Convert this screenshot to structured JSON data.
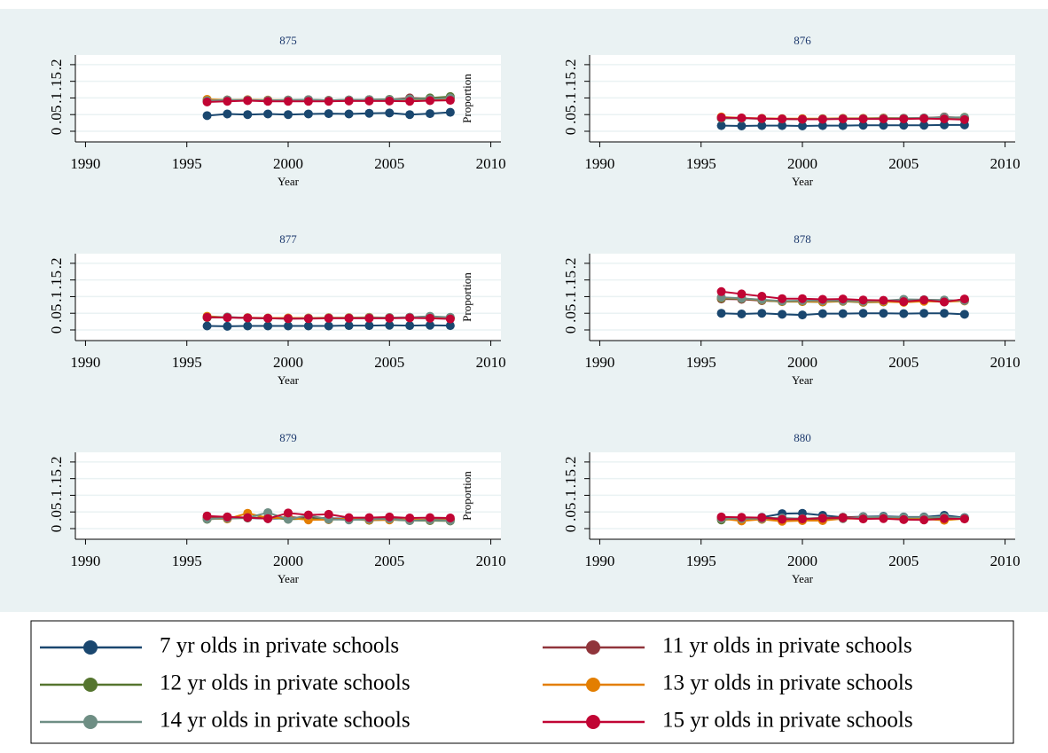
{
  "chart_data": [
    {
      "type": "line",
      "title": "875",
      "xlabel": "Year",
      "ylabel": "Proportion",
      "x": [
        1996,
        1997,
        1998,
        1999,
        2000,
        2001,
        2002,
        2003,
        2004,
        2005,
        2006,
        2007,
        2008
      ],
      "xlim": [
        1989.5,
        2010.5
      ],
      "xticks": [
        1990,
        1995,
        2000,
        2005,
        2010
      ],
      "ylim": [
        -0.032,
        0.229
      ],
      "yticks": [
        0,
        {
          "value": 0.05,
          "label": ".05"
        },
        {
          "value": 0.1,
          "label": ".1"
        },
        {
          "value": 0.15,
          "label": ".15"
        },
        {
          "value": 0.2,
          "label": ".2"
        }
      ],
      "grid": true,
      "series": [
        {
          "name": "7 yr olds in private schools",
          "color": "#1a476f",
          "values": [
            0.047,
            0.052,
            0.05,
            0.052,
            0.05,
            0.052,
            0.053,
            0.052,
            0.054,
            0.055,
            0.05,
            0.053,
            0.057
          ]
        },
        {
          "name": "11 yr olds in private schools",
          "color": "#90353b",
          "values": [
            0.092,
            0.093,
            0.094,
            0.093,
            0.093,
            0.095,
            0.093,
            0.094,
            0.095,
            0.095,
            0.1,
            0.098,
            0.1
          ]
        },
        {
          "name": "12 yr olds in private schools",
          "color": "#55752f",
          "values": [
            0.093,
            0.094,
            0.094,
            0.093,
            0.093,
            0.094,
            0.093,
            0.094,
            0.095,
            0.096,
            0.097,
            0.1,
            0.104
          ]
        },
        {
          "name": "13 yr olds in private schools",
          "color": "#e37e00",
          "values": [
            0.096,
            0.094,
            0.095,
            0.094,
            0.094,
            0.094,
            0.093,
            0.093,
            0.094,
            0.094,
            0.094,
            0.096,
            0.098
          ]
        },
        {
          "name": "14 yr olds in private schools",
          "color": "#6e8e84",
          "values": [
            0.092,
            0.094,
            0.094,
            0.093,
            0.094,
            0.095,
            0.093,
            0.094,
            0.095,
            0.095,
            0.097,
            0.097,
            0.1
          ]
        },
        {
          "name": "15 yr olds in private schools",
          "color": "#c10534",
          "values": [
            0.088,
            0.09,
            0.092,
            0.09,
            0.09,
            0.09,
            0.09,
            0.091,
            0.091,
            0.091,
            0.09,
            0.092,
            0.093
          ]
        }
      ]
    },
    {
      "type": "line",
      "title": "876",
      "xlabel": "Year",
      "x": [
        1996,
        1997,
        1998,
        1999,
        2000,
        2001,
        2002,
        2003,
        2004,
        2005,
        2006,
        2007,
        2008
      ],
      "xlim": [
        1989.5,
        2010.5
      ],
      "xticks": [
        1990,
        1995,
        2000,
        2005,
        2010
      ],
      "ylim": [
        -0.032,
        0.229
      ],
      "yticks": [
        0,
        {
          "value": 0.05,
          "label": ".05"
        },
        {
          "value": 0.1,
          "label": ".1"
        },
        {
          "value": 0.15,
          "label": ".15"
        },
        {
          "value": 0.2,
          "label": ".2"
        }
      ],
      "grid": true,
      "series": [
        {
          "color": "#1a476f",
          "values": [
            0.017,
            0.016,
            0.017,
            0.017,
            0.016,
            0.017,
            0.017,
            0.018,
            0.018,
            0.018,
            0.018,
            0.019,
            0.019
          ]
        },
        {
          "color": "#90353b",
          "values": [
            0.04,
            0.039,
            0.038,
            0.037,
            0.037,
            0.037,
            0.038,
            0.038,
            0.039,
            0.039,
            0.04,
            0.043,
            0.04
          ]
        },
        {
          "color": "#55752f",
          "values": [
            0.039,
            0.039,
            0.038,
            0.037,
            0.036,
            0.037,
            0.038,
            0.038,
            0.038,
            0.039,
            0.039,
            0.041,
            0.042
          ]
        },
        {
          "color": "#e37e00",
          "values": [
            0.043,
            0.04,
            0.039,
            0.038,
            0.038,
            0.038,
            0.039,
            0.039,
            0.04,
            0.039,
            0.039,
            0.04,
            0.039
          ]
        },
        {
          "color": "#6e8e84",
          "values": [
            0.04,
            0.039,
            0.038,
            0.037,
            0.036,
            0.037,
            0.038,
            0.038,
            0.039,
            0.039,
            0.04,
            0.042,
            0.041
          ]
        },
        {
          "color": "#c10534",
          "values": [
            0.041,
            0.04,
            0.038,
            0.037,
            0.036,
            0.036,
            0.037,
            0.037,
            0.037,
            0.037,
            0.038,
            0.037,
            0.035
          ]
        }
      ]
    },
    {
      "type": "line",
      "title": "877",
      "xlabel": "Year",
      "ylabel": "Proportion",
      "x": [
        1996,
        1997,
        1998,
        1999,
        2000,
        2001,
        2002,
        2003,
        2004,
        2005,
        2006,
        2007,
        2008
      ],
      "xlim": [
        1989.5,
        2010.5
      ],
      "xticks": [
        1990,
        1995,
        2000,
        2005,
        2010
      ],
      "ylim": [
        -0.032,
        0.229
      ],
      "yticks": [
        0,
        {
          "value": 0.05,
          "label": ".05"
        },
        {
          "value": 0.1,
          "label": ".1"
        },
        {
          "value": 0.15,
          "label": ".15"
        },
        {
          "value": 0.2,
          "label": ".2"
        }
      ],
      "grid": true,
      "series": [
        {
          "color": "#1a476f",
          "values": [
            0.012,
            0.011,
            0.012,
            0.012,
            0.012,
            0.012,
            0.012,
            0.013,
            0.013,
            0.014,
            0.013,
            0.014,
            0.013
          ]
        },
        {
          "color": "#90353b",
          "values": [
            0.038,
            0.038,
            0.036,
            0.035,
            0.035,
            0.035,
            0.036,
            0.036,
            0.037,
            0.037,
            0.038,
            0.04,
            0.035
          ]
        },
        {
          "color": "#55752f",
          "values": [
            0.037,
            0.038,
            0.036,
            0.035,
            0.034,
            0.035,
            0.036,
            0.036,
            0.036,
            0.037,
            0.037,
            0.04,
            0.037
          ]
        },
        {
          "color": "#e37e00",
          "values": [
            0.041,
            0.038,
            0.037,
            0.036,
            0.036,
            0.036,
            0.037,
            0.037,
            0.038,
            0.037,
            0.037,
            0.038,
            0.036
          ]
        },
        {
          "color": "#6e8e84",
          "values": [
            0.038,
            0.039,
            0.036,
            0.035,
            0.034,
            0.035,
            0.036,
            0.036,
            0.037,
            0.037,
            0.038,
            0.041,
            0.038
          ]
        },
        {
          "color": "#c10534",
          "values": [
            0.038,
            0.037,
            0.036,
            0.035,
            0.034,
            0.034,
            0.035,
            0.035,
            0.035,
            0.035,
            0.036,
            0.035,
            0.033
          ]
        }
      ]
    },
    {
      "type": "line",
      "title": "878",
      "xlabel": "Year",
      "x": [
        1996,
        1997,
        1998,
        1999,
        2000,
        2001,
        2002,
        2003,
        2004,
        2005,
        2006,
        2007,
        2008
      ],
      "xlim": [
        1989.5,
        2010.5
      ],
      "xticks": [
        1990,
        1995,
        2000,
        2005,
        2010
      ],
      "ylim": [
        -0.032,
        0.229
      ],
      "yticks": [
        0,
        {
          "value": 0.05,
          "label": ".05"
        },
        {
          "value": 0.1,
          "label": ".1"
        },
        {
          "value": 0.15,
          "label": ".15"
        },
        {
          "value": 0.2,
          "label": ".2"
        }
      ],
      "grid": true,
      "series": [
        {
          "color": "#1a476f",
          "values": [
            0.05,
            0.048,
            0.05,
            0.047,
            0.045,
            0.049,
            0.049,
            0.05,
            0.05,
            0.049,
            0.05,
            0.05,
            0.047
          ]
        },
        {
          "color": "#90353b",
          "values": [
            0.093,
            0.092,
            0.088,
            0.086,
            0.087,
            0.088,
            0.089,
            0.087,
            0.086,
            0.087,
            0.088,
            0.084,
            0.092
          ]
        },
        {
          "color": "#55752f",
          "values": [
            0.095,
            0.094,
            0.089,
            0.085,
            0.085,
            0.084,
            0.086,
            0.083,
            0.084,
            0.09,
            0.088,
            0.088,
            0.088
          ]
        },
        {
          "color": "#e37e00",
          "values": [
            0.097,
            0.095,
            0.09,
            0.086,
            0.086,
            0.085,
            0.087,
            0.084,
            0.085,
            0.083,
            0.086,
            0.085,
            0.087
          ]
        },
        {
          "color": "#6e8e84",
          "values": [
            0.098,
            0.095,
            0.091,
            0.087,
            0.088,
            0.088,
            0.088,
            0.086,
            0.088,
            0.092,
            0.091,
            0.09,
            0.088
          ]
        },
        {
          "color": "#c10534",
          "values": [
            0.115,
            0.108,
            0.101,
            0.094,
            0.094,
            0.092,
            0.093,
            0.09,
            0.089,
            0.085,
            0.09,
            0.084,
            0.093
          ]
        }
      ]
    },
    {
      "type": "line",
      "title": "879",
      "xlabel": "Year",
      "ylabel": "Proportion",
      "x": [
        1996,
        1997,
        1998,
        1999,
        2000,
        2001,
        2002,
        2003,
        2004,
        2005,
        2006,
        2007,
        2008
      ],
      "xlim": [
        1989.5,
        2010.5
      ],
      "xticks": [
        1990,
        1995,
        2000,
        2005,
        2010
      ],
      "ylim": [
        -0.032,
        0.229
      ],
      "yticks": [
        0,
        {
          "value": 0.05,
          "label": ".05"
        },
        {
          "value": 0.1,
          "label": ".1"
        },
        {
          "value": 0.15,
          "label": ".15"
        },
        {
          "value": 0.2,
          "label": ".2"
        }
      ],
      "grid": true,
      "series": [
        {
          "color": "#1a476f",
          "values": [
            0.03,
            0.031,
            0.032,
            0.03,
            0.031,
            0.034,
            0.031,
            0.03,
            0.027,
            0.03,
            0.026,
            0.027,
            0.028
          ]
        },
        {
          "color": "#90353b",
          "values": [
            0.034,
            0.035,
            0.033,
            0.03,
            0.035,
            0.031,
            0.03,
            0.029,
            0.028,
            0.031,
            0.025,
            0.028,
            0.027
          ]
        },
        {
          "color": "#55752f",
          "values": [
            0.028,
            0.031,
            0.032,
            0.034,
            0.028,
            0.03,
            0.027,
            0.029,
            0.025,
            0.027,
            0.024,
            0.024,
            0.023
          ]
        },
        {
          "color": "#e37e00",
          "values": [
            0.03,
            0.029,
            0.046,
            0.032,
            0.033,
            0.026,
            0.027,
            0.03,
            0.026,
            0.026,
            0.028,
            0.026,
            0.026
          ]
        },
        {
          "color": "#6e8e84",
          "values": [
            0.029,
            0.031,
            0.033,
            0.048,
            0.028,
            0.04,
            0.028,
            0.026,
            0.028,
            0.029,
            0.024,
            0.026,
            0.024
          ]
        },
        {
          "color": "#c10534",
          "values": [
            0.038,
            0.035,
            0.033,
            0.03,
            0.047,
            0.041,
            0.043,
            0.033,
            0.033,
            0.035,
            0.032,
            0.033,
            0.032
          ]
        }
      ]
    },
    {
      "type": "line",
      "title": "880",
      "xlabel": "Year",
      "x": [
        1996,
        1997,
        1998,
        1999,
        2000,
        2001,
        2002,
        2003,
        2004,
        2005,
        2006,
        2007,
        2008
      ],
      "xlim": [
        1989.5,
        2010.5
      ],
      "xticks": [
        1990,
        1995,
        2000,
        2005,
        2010
      ],
      "ylim": [
        -0.032,
        0.229
      ],
      "yticks": [
        0,
        {
          "value": 0.05,
          "label": ".05"
        },
        {
          "value": 0.1,
          "label": ".1"
        },
        {
          "value": 0.15,
          "label": ".15"
        },
        {
          "value": 0.2,
          "label": ".2"
        }
      ],
      "grid": true,
      "series": [
        {
          "color": "#1a476f",
          "values": [
            0.03,
            0.03,
            0.034,
            0.045,
            0.046,
            0.04,
            0.034,
            0.036,
            0.037,
            0.035,
            0.035,
            0.04,
            0.033
          ]
        },
        {
          "color": "#90353b",
          "values": [
            0.032,
            0.032,
            0.033,
            0.031,
            0.03,
            0.032,
            0.034,
            0.035,
            0.034,
            0.032,
            0.03,
            0.033,
            0.031
          ]
        },
        {
          "color": "#55752f",
          "values": [
            0.026,
            0.03,
            0.028,
            0.029,
            0.028,
            0.03,
            0.031,
            0.032,
            0.033,
            0.032,
            0.03,
            0.03,
            0.03
          ]
        },
        {
          "color": "#e37e00",
          "values": [
            0.03,
            0.023,
            0.028,
            0.022,
            0.024,
            0.024,
            0.03,
            0.03,
            0.031,
            0.028,
            0.029,
            0.025,
            0.03
          ]
        },
        {
          "color": "#6e8e84",
          "values": [
            0.03,
            0.03,
            0.03,
            0.032,
            0.03,
            0.032,
            0.03,
            0.035,
            0.035,
            0.034,
            0.034,
            0.035,
            0.032
          ]
        },
        {
          "color": "#c10534",
          "values": [
            0.035,
            0.034,
            0.033,
            0.028,
            0.029,
            0.031,
            0.032,
            0.029,
            0.03,
            0.027,
            0.026,
            0.03,
            0.029
          ]
        }
      ]
    }
  ]
}
